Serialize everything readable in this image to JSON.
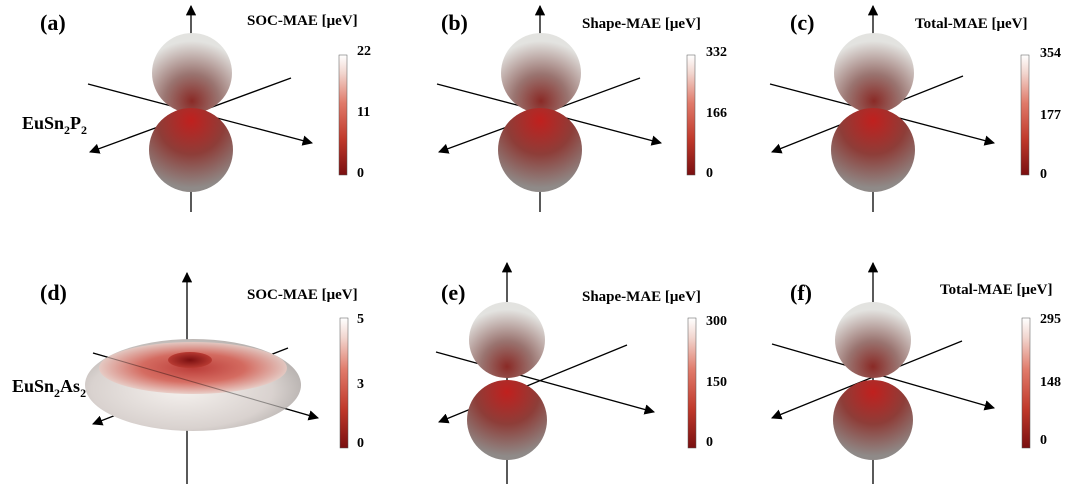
{
  "chart_data": [
    {
      "type": "3d-surface",
      "panel_label": "(a)",
      "row_label": "EuSn2P2",
      "shape": "dumbbell",
      "colorbar": {
        "title": "SOC-MAE [μeV]",
        "range": [
          0,
          22
        ],
        "ticks": [
          "22",
          "11",
          "0"
        ]
      }
    },
    {
      "type": "3d-surface",
      "panel_label": "(b)",
      "shape": "dumbbell",
      "colorbar": {
        "title": "Shape-MAE [μeV]",
        "range": [
          0,
          332
        ],
        "ticks": [
          "332",
          "166",
          "0"
        ]
      }
    },
    {
      "type": "3d-surface",
      "panel_label": "(c)",
      "shape": "dumbbell",
      "colorbar": {
        "title": "Total-MAE [μeV]",
        "range": [
          0,
          354
        ],
        "ticks": [
          "354",
          "177",
          "0"
        ]
      }
    },
    {
      "type": "3d-surface",
      "panel_label": "(d)",
      "row_label": "EuSn2As2",
      "shape": "torus",
      "colorbar": {
        "title": "SOC-MAE [μeV]",
        "range": [
          0,
          5
        ],
        "ticks": [
          "5",
          "3",
          "0"
        ]
      }
    },
    {
      "type": "3d-surface",
      "panel_label": "(e)",
      "shape": "dumbbell",
      "colorbar": {
        "title": "Shape-MAE [μeV]",
        "range": [
          0,
          300
        ],
        "ticks": [
          "300",
          "150",
          "0"
        ]
      }
    },
    {
      "type": "3d-surface",
      "panel_label": "(f)",
      "shape": "dumbbell",
      "colorbar": {
        "title": "Total-MAE [μeV]",
        "range": [
          0,
          295
        ],
        "ticks": [
          "295",
          "148",
          "0"
        ]
      }
    }
  ],
  "colorscale": [
    "#7a0f10",
    "#c0392b",
    "#e07a6a",
    "#f2d6cf",
    "#ffffff"
  ]
}
